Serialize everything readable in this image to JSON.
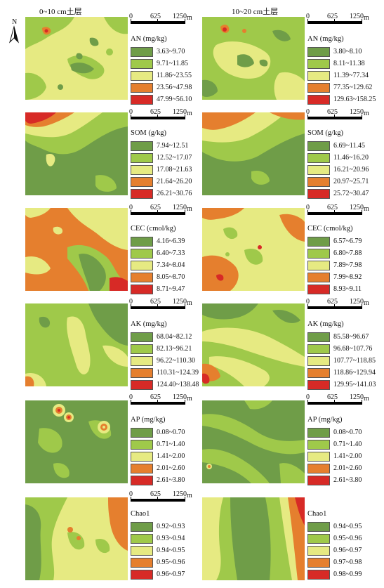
{
  "columns": [
    {
      "title": "0~10 cm土层"
    },
    {
      "title": "10~20 cm土层"
    }
  ],
  "north_label": "N",
  "scale_bar": {
    "ticks": [
      "0",
      "625",
      "1250"
    ],
    "unit": "m"
  },
  "colors": {
    "class1": "#6f9d48",
    "class2": "#9fc94a",
    "class3": "#e6ea82",
    "class4": "#e57f2e",
    "class5": "#d72a26"
  },
  "panels": [
    {
      "title": "AN (mg/kg)",
      "classes": [
        "3.63~9.70",
        "9.71~11.85",
        "11.86~23.55",
        "23.56~47.98",
        "47.99~56.10"
      ]
    },
    {
      "title": "AN (mg/kg)",
      "classes": [
        "3.80~8.10",
        "8.11~11.38",
        "11.39~77.34",
        "77.35~129.62",
        "129.63~158.25"
      ]
    },
    {
      "title": "SOM (g/kg)",
      "classes": [
        "7.94~12.51",
        "12.52~17.07",
        "17.08~21.63",
        "21.64~26.20",
        "26.21~30.76"
      ]
    },
    {
      "title": "SOM (g/kg)",
      "classes": [
        "6.69~11.45",
        "11.46~16.20",
        "16.21~20.96",
        "20.97~25.71",
        "25.72~30.47"
      ]
    },
    {
      "title": "CEC (cmol/kg)",
      "classes": [
        "4.16~6.39",
        "6.40~7.33",
        "7.34~8.04",
        "8.05~8.70",
        "8.71~9.47"
      ]
    },
    {
      "title": "CEC (cmol/kg)",
      "classes": [
        "6.57~6.79",
        "6.80~7.88",
        "7.89~7.98",
        "7.99~8.92",
        "8.93~9.11"
      ]
    },
    {
      "title": "AK (mg/kg)",
      "classes": [
        "68.04~82.12",
        "82.13~96.21",
        "96.22~110.30",
        "110.31~124.39",
        "124.40~138.48"
      ]
    },
    {
      "title": "AK (mg/kg)",
      "classes": [
        "85.58~96.67",
        "96.68~107.76",
        "107.77~118.85",
        "118.86~129.94",
        "129.95~141.03"
      ]
    },
    {
      "title": "AP (mg/kg)",
      "classes": [
        "0.08~0.70",
        "0.71~1.40",
        "1.41~2.00",
        "2.01~2.60",
        "2.61~3.80"
      ]
    },
    {
      "title": "AP (mg/kg)",
      "classes": [
        "0.08~0.70",
        "0.71~1.40",
        "1.41~2.00",
        "2.01~2.60",
        "2.61~3.80"
      ]
    },
    {
      "title": "Chao1",
      "classes": [
        "0.92~0.93",
        "0.93~0.94",
        "0.94~0.95",
        "0.95~0.96",
        "0.96~0.97"
      ]
    },
    {
      "title": "Chao1",
      "classes": [
        "0.94~0.95",
        "0.95~0.96",
        "0.96~0.97",
        "0.97~0.98",
        "0.98~0.99"
      ]
    }
  ]
}
